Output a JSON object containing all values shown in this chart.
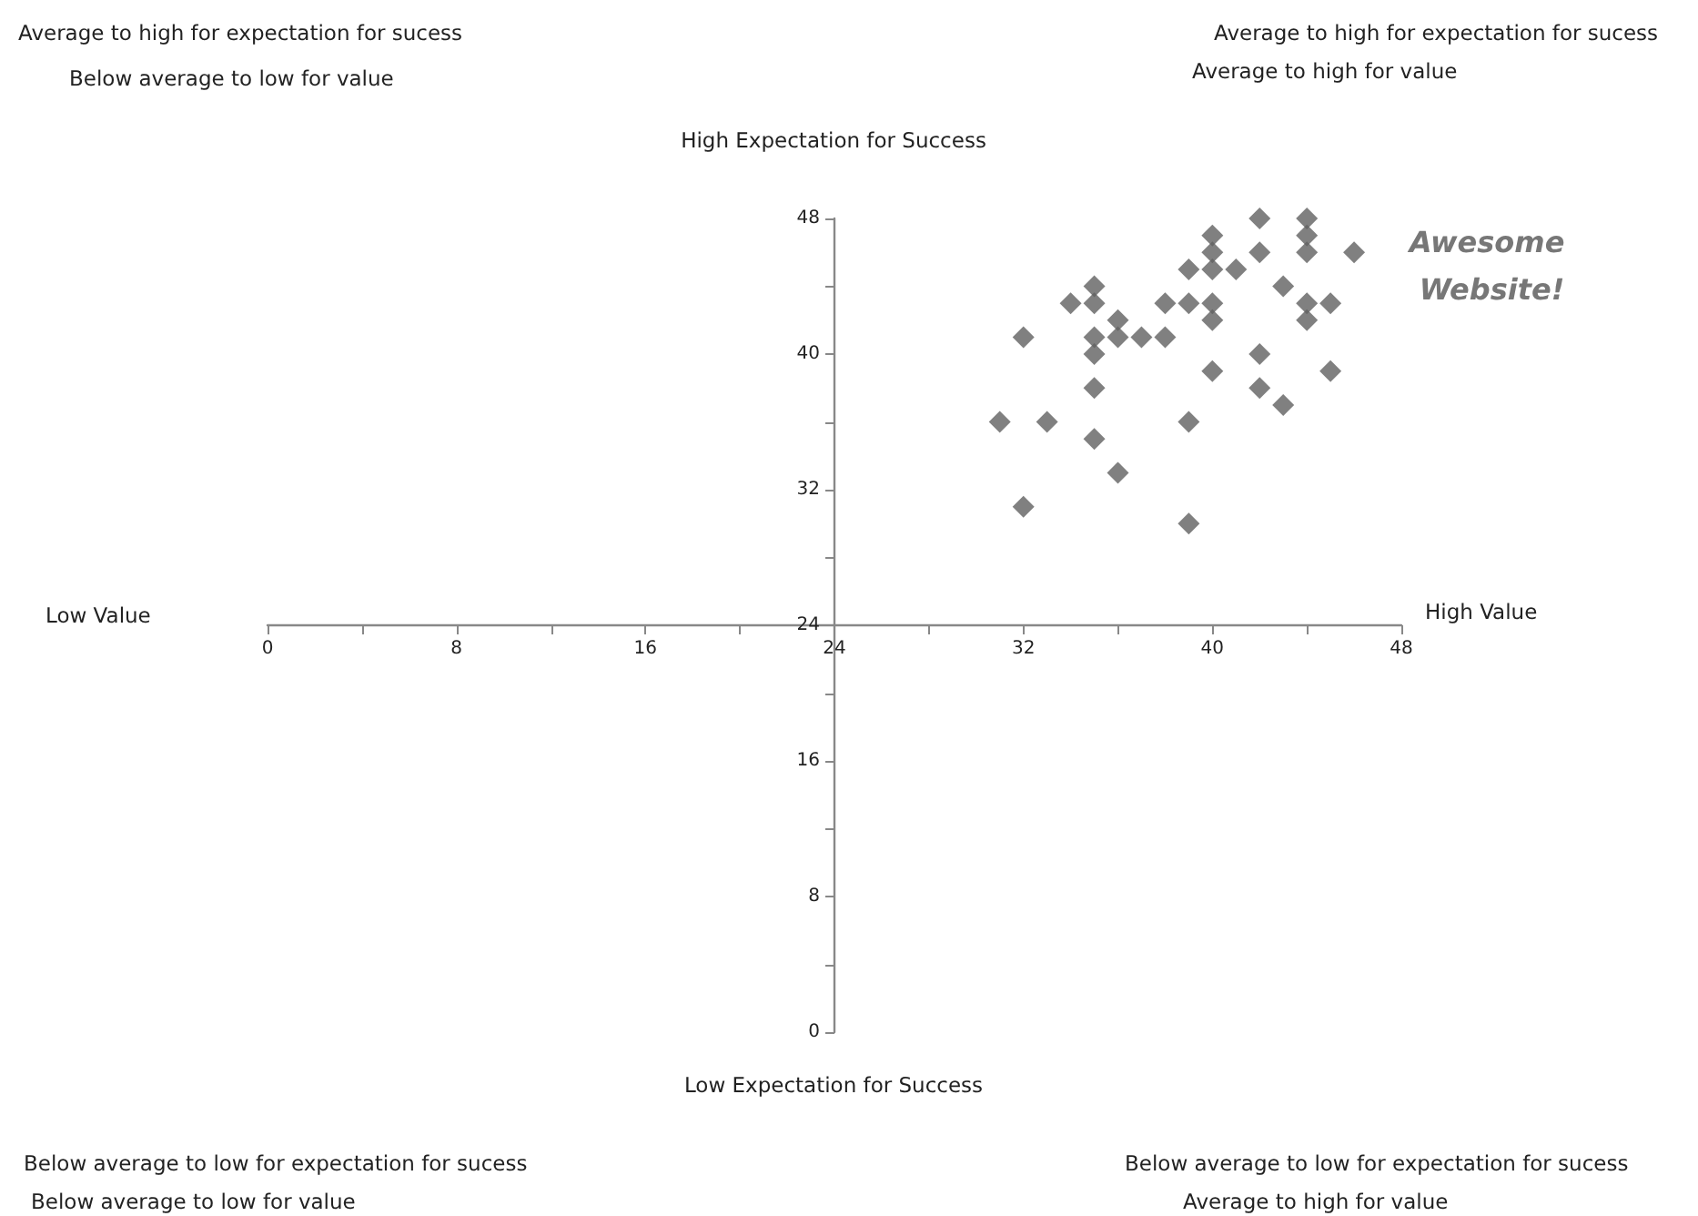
{
  "chart_data": {
    "type": "scatter",
    "marker": "diamond",
    "grid": false,
    "xlim": [
      0,
      48
    ],
    "ylim": [
      0,
      48
    ],
    "xticks": [
      0,
      8,
      16,
      24,
      32,
      40,
      48
    ],
    "yticks": [
      0,
      8,
      16,
      24,
      32,
      40,
      48
    ],
    "series": [
      {
        "color": "#606060",
        "x": [
          42,
          44,
          44,
          44,
          40,
          40,
          42,
          39,
          40,
          41,
          43,
          35,
          34,
          35,
          38,
          39,
          40,
          44,
          44,
          40,
          36,
          32,
          35,
          36,
          37,
          38,
          35,
          42,
          40,
          35,
          42,
          43,
          31,
          33,
          39,
          35,
          36,
          32,
          39,
          46,
          45,
          45
        ],
        "values": [
          48,
          48,
          47,
          46,
          47,
          46,
          46,
          45,
          45,
          45,
          44,
          44,
          43,
          43,
          43,
          43,
          43,
          43,
          42,
          42,
          42,
          41,
          41,
          41,
          41,
          41,
          40,
          40,
          39,
          38,
          38,
          37,
          36,
          36,
          36,
          35,
          33,
          31,
          30,
          46,
          43,
          39
        ]
      }
    ],
    "annotations": [
      "Average to high for expectation for sucess",
      "Below average to low for value",
      "Average to high for expectation for sucess",
      "Average to high for value",
      "High Expectation for Success",
      "Awesome Website!",
      "Low Value",
      "High Value",
      "Low Expectation for Success",
      "Below average to low for expectation for sucess",
      "Below average to low for value",
      "Below average to low for expectation for sucess",
      "Average to high for value"
    ]
  }
}
